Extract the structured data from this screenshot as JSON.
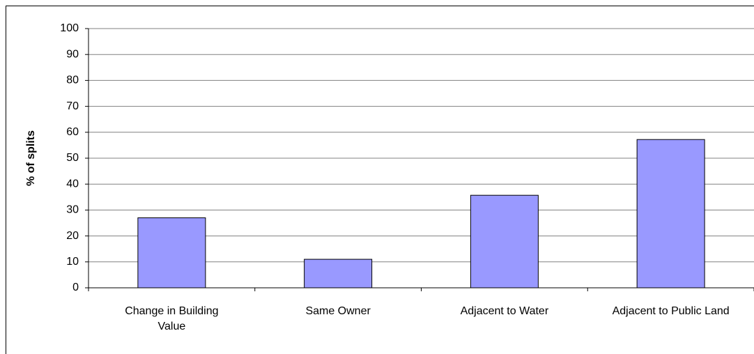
{
  "chart_data": {
    "type": "bar",
    "y_label": "% of splits",
    "categories": [
      "Change in Building Value",
      "Same Owner",
      "Adjacent to Water",
      "Adjacent to Public Land"
    ],
    "values": [
      27,
      11,
      35.7,
      57.2
    ],
    "color": "#9999ff",
    "ylim": [
      0,
      100
    ],
    "yticks": [
      0,
      10,
      20,
      30,
      40,
      50,
      60,
      70,
      80,
      90,
      100
    ],
    "grid": true
  }
}
